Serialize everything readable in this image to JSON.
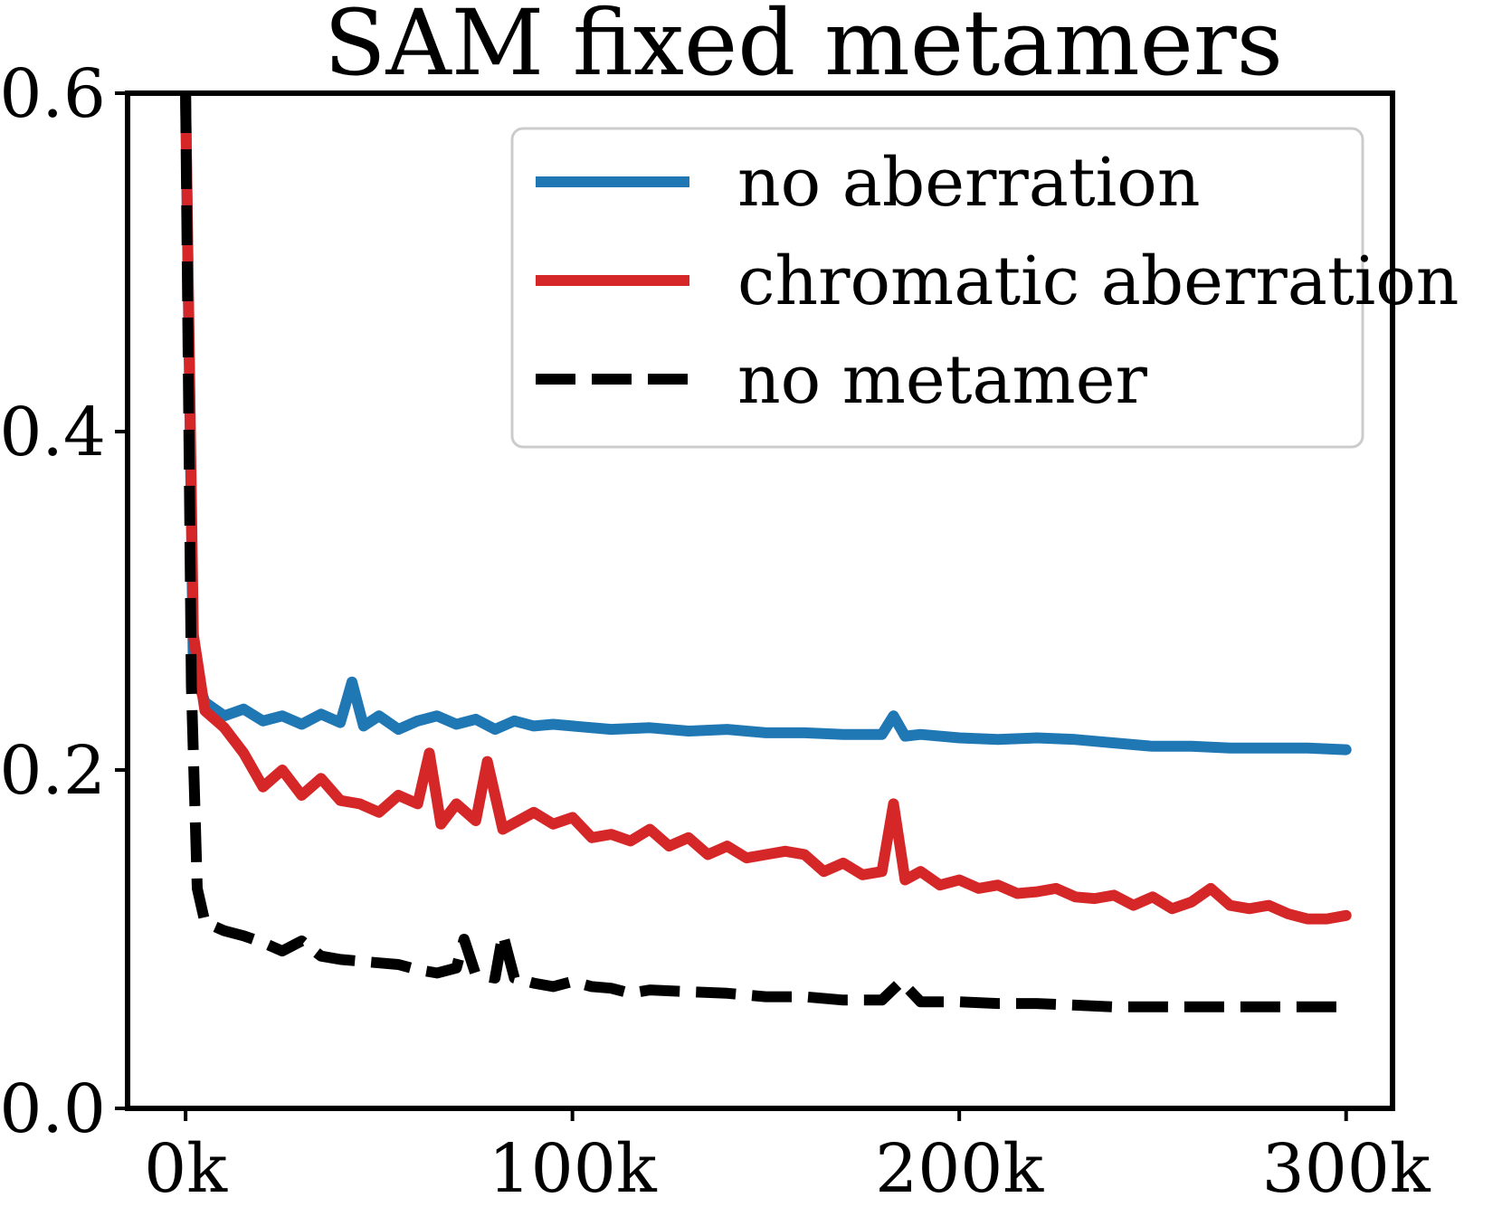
{
  "chart_data": {
    "type": "line",
    "title": "SAM fixed metamers",
    "xlabel": "",
    "ylabel": "",
    "xlim": [
      -15000,
      312000
    ],
    "ylim": [
      0.0,
      0.6
    ],
    "xticks": [
      0,
      100000,
      200000,
      300000
    ],
    "xtick_labels": [
      "0k",
      "100k",
      "200k",
      "300k"
    ],
    "yticks": [
      0.0,
      0.2,
      0.4,
      0.6
    ],
    "ytick_labels": [
      "0.0",
      "0.2",
      "0.4",
      "0.6"
    ],
    "grid": false,
    "legend_position": "upper-right",
    "series": [
      {
        "name": "no aberration",
        "color": "#1f77b4",
        "style": "solid",
        "x": [
          0,
          2000,
          5000,
          10000,
          15000,
          20000,
          25000,
          30000,
          35000,
          40000,
          43000,
          46000,
          50000,
          55000,
          60000,
          65000,
          70000,
          75000,
          80000,
          85000,
          90000,
          95000,
          100000,
          110000,
          120000,
          130000,
          140000,
          150000,
          160000,
          170000,
          180000,
          183000,
          186000,
          190000,
          200000,
          210000,
          220000,
          230000,
          240000,
          250000,
          260000,
          270000,
          280000,
          290000,
          300000
        ],
        "values": [
          0.6,
          0.26,
          0.24,
          0.232,
          0.236,
          0.229,
          0.232,
          0.227,
          0.233,
          0.228,
          0.252,
          0.226,
          0.232,
          0.224,
          0.229,
          0.232,
          0.227,
          0.23,
          0.224,
          0.229,
          0.226,
          0.227,
          0.226,
          0.224,
          0.225,
          0.223,
          0.224,
          0.222,
          0.222,
          0.221,
          0.221,
          0.232,
          0.22,
          0.221,
          0.219,
          0.218,
          0.219,
          0.218,
          0.216,
          0.214,
          0.214,
          0.213,
          0.213,
          0.213,
          0.212
        ]
      },
      {
        "name": "chromatic aberration",
        "color": "#d62728",
        "style": "solid",
        "x": [
          0,
          2000,
          5000,
          10000,
          15000,
          20000,
          25000,
          30000,
          35000,
          40000,
          45000,
          50000,
          55000,
          60000,
          63000,
          66000,
          70000,
          75000,
          78000,
          82000,
          90000,
          95000,
          100000,
          105000,
          110000,
          115000,
          120000,
          125000,
          130000,
          135000,
          140000,
          145000,
          150000,
          155000,
          160000,
          165000,
          170000,
          175000,
          180000,
          183000,
          186000,
          190000,
          195000,
          200000,
          205000,
          210000,
          215000,
          220000,
          225000,
          230000,
          235000,
          240000,
          245000,
          250000,
          255000,
          260000,
          265000,
          270000,
          275000,
          280000,
          285000,
          290000,
          295000,
          300000
        ],
        "values": [
          0.6,
          0.28,
          0.235,
          0.225,
          0.21,
          0.19,
          0.2,
          0.185,
          0.195,
          0.182,
          0.18,
          0.175,
          0.185,
          0.18,
          0.21,
          0.168,
          0.18,
          0.17,
          0.205,
          0.165,
          0.175,
          0.168,
          0.172,
          0.16,
          0.162,
          0.158,
          0.165,
          0.155,
          0.16,
          0.15,
          0.155,
          0.148,
          0.15,
          0.152,
          0.15,
          0.14,
          0.145,
          0.138,
          0.14,
          0.18,
          0.135,
          0.14,
          0.132,
          0.135,
          0.13,
          0.132,
          0.127,
          0.128,
          0.13,
          0.125,
          0.124,
          0.126,
          0.12,
          0.125,
          0.118,
          0.122,
          0.13,
          0.12,
          0.118,
          0.12,
          0.115,
          0.112,
          0.112,
          0.114
        ]
      },
      {
        "name": "no metamer",
        "color": "#000000",
        "style": "dashed",
        "x": [
          0,
          1500,
          3000,
          5000,
          10000,
          15000,
          20000,
          25000,
          30000,
          35000,
          40000,
          45000,
          50000,
          55000,
          60000,
          65000,
          70000,
          72000,
          75000,
          80000,
          82000,
          85000,
          90000,
          95000,
          100000,
          105000,
          110000,
          115000,
          120000,
          130000,
          140000,
          150000,
          160000,
          170000,
          180000,
          185000,
          190000,
          200000,
          210000,
          220000,
          230000,
          240000,
          250000,
          260000,
          270000,
          280000,
          290000,
          300000
        ],
        "values": [
          0.6,
          0.25,
          0.13,
          0.11,
          0.105,
          0.102,
          0.098,
          0.093,
          0.099,
          0.09,
          0.088,
          0.087,
          0.086,
          0.085,
          0.082,
          0.08,
          0.083,
          0.1,
          0.079,
          0.077,
          0.103,
          0.077,
          0.074,
          0.072,
          0.075,
          0.072,
          0.071,
          0.068,
          0.07,
          0.069,
          0.068,
          0.066,
          0.066,
          0.064,
          0.064,
          0.075,
          0.063,
          0.063,
          0.062,
          0.062,
          0.061,
          0.06,
          0.06,
          0.06,
          0.06,
          0.06,
          0.06,
          0.06
        ]
      }
    ]
  }
}
